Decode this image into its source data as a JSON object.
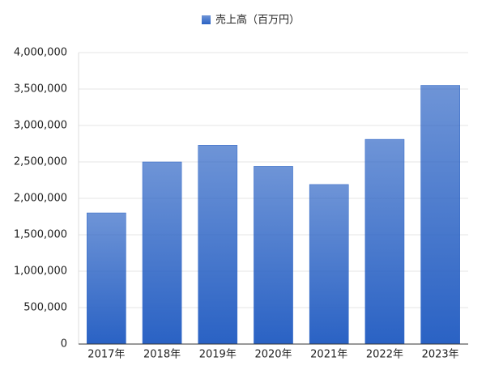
{
  "chart_data": {
    "type": "bar",
    "legend": "売上高（百万円）",
    "categories": [
      "2017年",
      "2018年",
      "2019年",
      "2020年",
      "2021年",
      "2022年",
      "2023年"
    ],
    "series": [
      {
        "name": "売上高（百万円）",
        "color": "#2a62c4",
        "values": [
          1800000,
          2500000,
          2730000,
          2440000,
          2190000,
          2810000,
          3550000
        ]
      }
    ],
    "ylim": [
      0,
      4000000
    ],
    "yticks": [
      0,
      {
        "value": 500000,
        "label": "500,000"
      },
      {
        "value": 1000000,
        "label": "1,000,000"
      },
      {
        "value": 1500000,
        "label": "1,500,000"
      },
      {
        "value": 2000000,
        "label": "2,000,000"
      },
      {
        "value": 2500000,
        "label": "2,500,000"
      },
      {
        "value": 3000000,
        "label": "3,000,000"
      },
      {
        "value": 3500000,
        "label": "3,500,000"
      },
      {
        "value": 4000000,
        "label": "4,000,000"
      }
    ],
    "grid": true
  }
}
